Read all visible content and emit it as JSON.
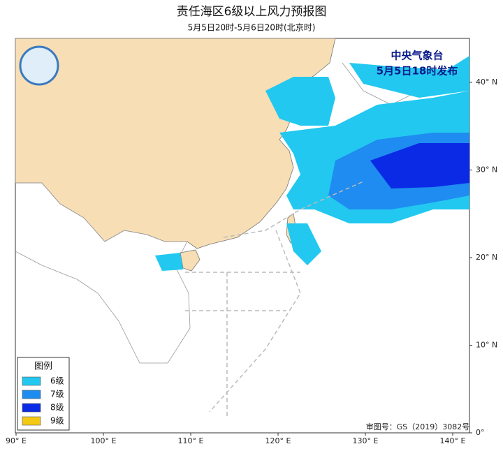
{
  "header": {
    "title": "责任海区6级以上风力预报图",
    "subtitle": "5月5日20时-5月6日20时(北京时)"
  },
  "issuer": {
    "agency": "中央气象台",
    "time": "5月5日18时发布"
  },
  "legend": {
    "title": "图例",
    "items": [
      {
        "label": "6级",
        "color": "#22c8ef"
      },
      {
        "label": "7级",
        "color": "#1e8cf0"
      },
      {
        "label": "8级",
        "color": "#0a2ae6"
      },
      {
        "label": "9级",
        "color": "#f5c814"
      }
    ]
  },
  "axes": {
    "x_labels": [
      "90° E",
      "100° E",
      "110° E",
      "120° E",
      "130° E",
      "140° E"
    ],
    "y_labels": [
      "40° N",
      "30° N",
      "20° N",
      "10° N",
      "0°"
    ]
  },
  "footer": {
    "approval": "审图号：GS（2019）3082号"
  }
}
